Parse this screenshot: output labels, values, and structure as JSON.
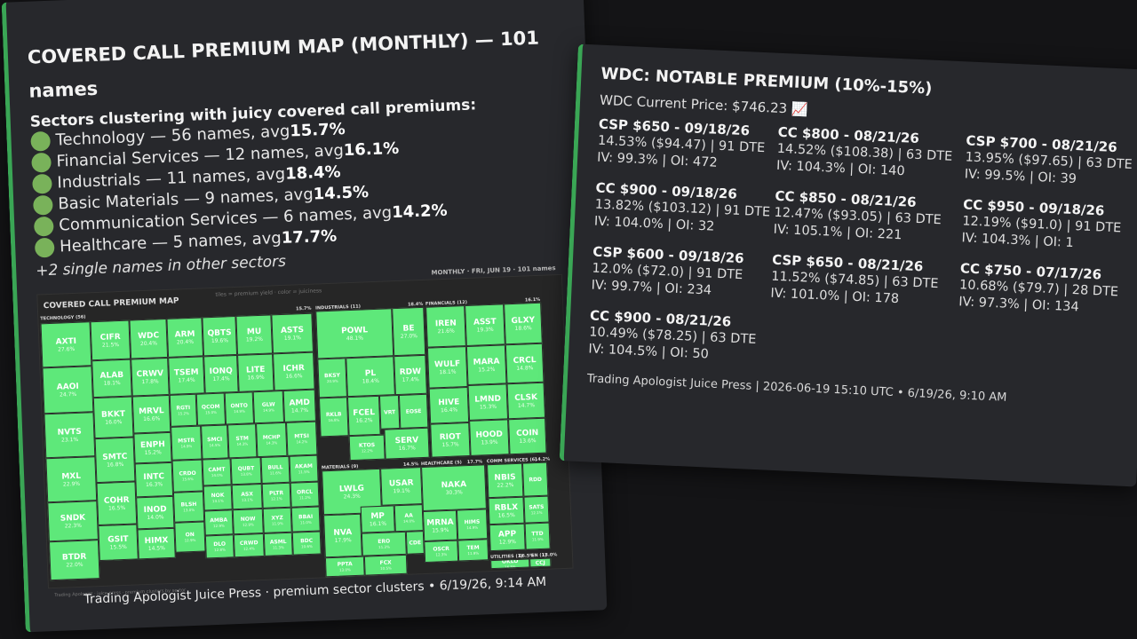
{
  "left": {
    "title_line1": "COVERED CALL PREMIUM MAP (MONTHLY) — 101",
    "title_line2": "names",
    "subhead": "Sectors clustering with juicy covered call premiums:",
    "sectors": [
      {
        "text": "Technology — 56 names, avg ",
        "avg": "15.7%"
      },
      {
        "text": "Financial Services — 12 names, avg ",
        "avg": "16.1%"
      },
      {
        "text": "Industrials — 11 names, avg ",
        "avg": "18.4%"
      },
      {
        "text": "Basic Materials — 9 names, avg ",
        "avg": "14.5%"
      },
      {
        "text": "Communication Services — 6 names, avg ",
        "avg": "14.2%"
      },
      {
        "text": "Healthcare — 5 names, avg ",
        "avg": "17.7%"
      }
    ],
    "single_note": "+2 single names in other sectors",
    "footer": "Trading Apologist Juice Press · premium sector clusters • 6/19/26, 9:14 AM",
    "treemap": {
      "title": "COVERED CALL PREMIUM MAP",
      "legend": "tiles = premium yield · color = juiciness",
      "meta": "MONTHLY · FRI, JUN 19 · 101 names",
      "caption": "Trading Apologist · juice press · premium clusters by sector",
      "sector_labels": {
        "tech": "TECHNOLOGY (56)",
        "tech_avg": "15.7%",
        "ind": "INDUSTRIALS (11)",
        "ind_avg": "18.4%",
        "fin": "FINANCIALS (12)",
        "fin_avg": "16.1%",
        "mat": "MATERIALS (9)",
        "mat_avg": "14.5%",
        "hc": "HEALTHCARE (5)",
        "hc_avg": "17.7%",
        "comm": "COMM SERVICES (6)",
        "comm_avg": "14.2%",
        "util": "UTILITIES (1)",
        "util_avg": "16.5%",
        "en": "EN (1)",
        "en_avg": "13.0%"
      },
      "tiles": [
        {
          "s": "AXTI",
          "p": "27.6%"
        },
        {
          "s": "CIFR",
          "p": "21.5%"
        },
        {
          "s": "WDC",
          "p": "20.4%"
        },
        {
          "s": "ARM",
          "p": "20.4%"
        },
        {
          "s": "QBTS",
          "p": "19.6%"
        },
        {
          "s": "MU",
          "p": "19.2%"
        },
        {
          "s": "ASTS",
          "p": "19.1%"
        },
        {
          "s": "AAOI",
          "p": "24.7%"
        },
        {
          "s": "ALAB",
          "p": "18.1%"
        },
        {
          "s": "CRWV",
          "p": "17.8%"
        },
        {
          "s": "TSEM",
          "p": "17.4%"
        },
        {
          "s": "IONQ",
          "p": "17.4%"
        },
        {
          "s": "LITE",
          "p": "16.9%"
        },
        {
          "s": "ICHR",
          "p": "16.6%"
        },
        {
          "s": "NVTS",
          "p": "23.1%"
        },
        {
          "s": "BKKT",
          "p": "16.0%"
        },
        {
          "s": "MRVL",
          "p": "16.6%"
        },
        {
          "s": "RGTI",
          "p": "15.2%"
        },
        {
          "s": "QCOM",
          "p": "15.0%"
        },
        {
          "s": "ONTO",
          "p": "14.9%"
        },
        {
          "s": "GLW",
          "p": "14.9%"
        },
        {
          "s": "AMD",
          "p": "14.7%"
        },
        {
          "s": "ENPH",
          "p": "15.2%"
        },
        {
          "s": "MSTR",
          "p": "14.9%"
        },
        {
          "s": "SMCI",
          "p": "14.5%"
        },
        {
          "s": "STM",
          "p": "14.3%"
        },
        {
          "s": "MCHP",
          "p": "14.3%"
        },
        {
          "s": "MTSI",
          "p": "14.2%"
        },
        {
          "s": "MXL",
          "p": "22.9%"
        },
        {
          "s": "SMTC",
          "p": "16.8%"
        },
        {
          "s": "INTC",
          "p": "16.3%"
        },
        {
          "s": "CRDO",
          "p": "15.6%"
        },
        {
          "s": "CAMT",
          "p": "14.0%"
        },
        {
          "s": "QUBT",
          "p": "13.8%"
        },
        {
          "s": "BULL",
          "p": "11.6%"
        },
        {
          "s": "AKAM",
          "p": "11.5%"
        },
        {
          "s": "SNDK",
          "p": "22.3%"
        },
        {
          "s": "COHR",
          "p": "16.5%"
        },
        {
          "s": "INOD",
          "p": "14.0%"
        },
        {
          "s": "BLSH",
          "p": "13.0%"
        },
        {
          "s": "NOK",
          "p": "13.1%"
        },
        {
          "s": "ASX",
          "p": "13.1%"
        },
        {
          "s": "PLTR",
          "p": "12.1%"
        },
        {
          "s": "ORCL",
          "p": "11.2%"
        },
        {
          "s": "AMBA",
          "p": "12.9%"
        },
        {
          "s": "NOW",
          "p": "12.9%"
        },
        {
          "s": "XYZ",
          "p": "11.9%"
        },
        {
          "s": "BBAI",
          "p": "11.0%"
        },
        {
          "s": "BTDR",
          "p": "22.0%"
        },
        {
          "s": "GSIT",
          "p": "15.5%"
        },
        {
          "s": "HIMX",
          "p": "14.5%"
        },
        {
          "s": "ON",
          "p": "12.9%"
        },
        {
          "s": "DLO",
          "p": "12.8%"
        },
        {
          "s": "CRWD",
          "p": "12.4%"
        },
        {
          "s": "ASML",
          "p": "11.3%"
        },
        {
          "s": "BDC",
          "p": "10.6%"
        },
        {
          "s": "POWL",
          "p": "48.1%"
        },
        {
          "s": "BE",
          "p": "27.0%"
        },
        {
          "s": "BKSY",
          "p": "20.9%"
        },
        {
          "s": "PL",
          "p": "18.4%"
        },
        {
          "s": "RDW",
          "p": "17.4%"
        },
        {
          "s": "FCEL",
          "p": "16.2%"
        },
        {
          "s": "VRT",
          "p": ""
        },
        {
          "s": "EOSE",
          "p": ""
        },
        {
          "s": "RKLB",
          "p": "16.8%"
        },
        {
          "s": "KTOS",
          "p": "12.2%"
        },
        {
          "s": "SERV",
          "p": "16.7%"
        },
        {
          "s": "IREN",
          "p": "21.6%"
        },
        {
          "s": "ASST",
          "p": "19.3%"
        },
        {
          "s": "GLXY",
          "p": "18.6%"
        },
        {
          "s": "WULF",
          "p": "18.1%"
        },
        {
          "s": "MARA",
          "p": "15.2%"
        },
        {
          "s": "CRCL",
          "p": "14.8%"
        },
        {
          "s": "HIVE",
          "p": "16.4%"
        },
        {
          "s": "LMND",
          "p": "15.3%"
        },
        {
          "s": "CLSK",
          "p": "14.7%"
        },
        {
          "s": "RIOT",
          "p": "15.7%"
        },
        {
          "s": "HOOD",
          "p": "13.9%"
        },
        {
          "s": "COIN",
          "p": "13.6%"
        },
        {
          "s": "LWLG",
          "p": "24.3%"
        },
        {
          "s": "USAR",
          "p": "19.1%"
        },
        {
          "s": "NVA",
          "p": "17.9%"
        },
        {
          "s": "MP",
          "p": "16.1%"
        },
        {
          "s": "AA",
          "p": "14.0%"
        },
        {
          "s": "ERO",
          "p": "11.3%"
        },
        {
          "s": "PPTA",
          "p": "13.0%"
        },
        {
          "s": "FCX",
          "p": "10.5%"
        },
        {
          "s": "CDE",
          "p": ""
        },
        {
          "s": "NAKA",
          "p": "30.3%"
        },
        {
          "s": "MRNA",
          "p": "15.9%"
        },
        {
          "s": "HIMS",
          "p": "14.9%"
        },
        {
          "s": "OSCR",
          "p": "12.3%"
        },
        {
          "s": "TEM",
          "p": "11.9%"
        },
        {
          "s": "NBIS",
          "p": "22.2%"
        },
        {
          "s": "RDD",
          "p": ""
        },
        {
          "s": "RBLX",
          "p": "16.5%"
        },
        {
          "s": "SATS",
          "p": "12.1%"
        },
        {
          "s": "APP",
          "p": "12.9%"
        },
        {
          "s": "TTD",
          "p": "11.9%"
        },
        {
          "s": "OKLO",
          "p": "16.5%"
        },
        {
          "s": "CCJ",
          "p": ""
        }
      ]
    }
  },
  "right": {
    "title": "WDC: NOTABLE PREMIUM (10%-15%)",
    "price": "WDC Current Price: $746.23 📈",
    "options": [
      {
        "h": "CSP $650 - 09/18/26",
        "l1": "14.53% ($94.47) | 91 DTE",
        "l2": "IV: 99.3% | OI: 472"
      },
      {
        "h": "CC $800 - 08/21/26",
        "l1": "14.52% ($108.38) | 63 DTE",
        "l2": "IV: 104.3% | OI: 140"
      },
      {
        "h": "CSP $700 - 08/21/26",
        "l1": "13.95% ($97.65) | 63 DTE",
        "l2": "IV: 99.5% | OI: 39"
      },
      {
        "h": "CC $900 - 09/18/26",
        "l1": "13.82% ($103.12) | 91 DTE",
        "l2": "IV: 104.0% | OI: 32"
      },
      {
        "h": "CC $850 - 08/21/26",
        "l1": "12.47% ($93.05) | 63 DTE",
        "l2": "IV: 105.1% | OI: 221"
      },
      {
        "h": "CC $950 - 09/18/26",
        "l1": "12.19% ($91.0) | 91 DTE",
        "l2": "IV: 104.3% | OI: 1"
      },
      {
        "h": "CSP $600 - 09/18/26",
        "l1": "12.0% ($72.0) | 91 DTE",
        "l2": "IV: 99.7% | OI: 234"
      },
      {
        "h": "CSP $650 - 08/21/26",
        "l1": "11.52% ($74.85) | 63 DTE",
        "l2": "IV: 101.0% | OI: 178"
      },
      {
        "h": "CC $750 - 07/17/26",
        "l1": "10.68% ($79.7) | 28 DTE",
        "l2": "IV: 97.3% | OI: 134"
      },
      {
        "h": "CC $900 - 08/21/26",
        "l1": "10.49% ($78.25) | 63 DTE",
        "l2": "IV: 104.5% | OI: 50"
      }
    ],
    "footer": "Trading Apologist Juice Press | 2026-06-19 15:10 UTC • 6/19/26, 9:10 AM"
  },
  "colors": {
    "accent": "#3aa655",
    "tile": "#5ee87a",
    "card": "#27282c",
    "bg": "#141416"
  }
}
